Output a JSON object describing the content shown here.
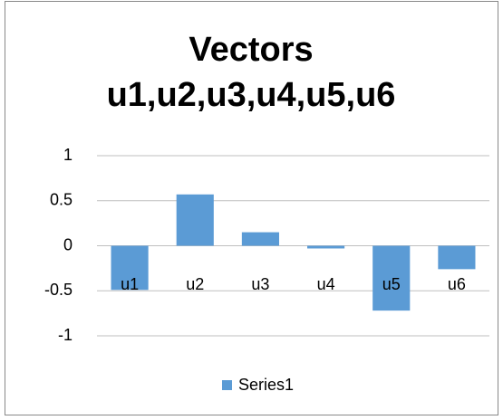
{
  "chart_data": {
    "type": "bar",
    "title": "Vectors u1,u2,u3,u4,u5,u6",
    "categories": [
      "u1",
      "u2",
      "u3",
      "u4",
      "u5",
      "u6"
    ],
    "series": [
      {
        "name": "Series1",
        "color": "#5b9bd5",
        "values": [
          -0.49,
          0.57,
          0.15,
          -0.03,
          -0.72,
          -0.26
        ]
      }
    ],
    "ylim": [
      -1,
      1
    ],
    "yticks": [
      -1,
      -0.5,
      0,
      0.5,
      1
    ],
    "grid": true,
    "legend": "bottom"
  }
}
